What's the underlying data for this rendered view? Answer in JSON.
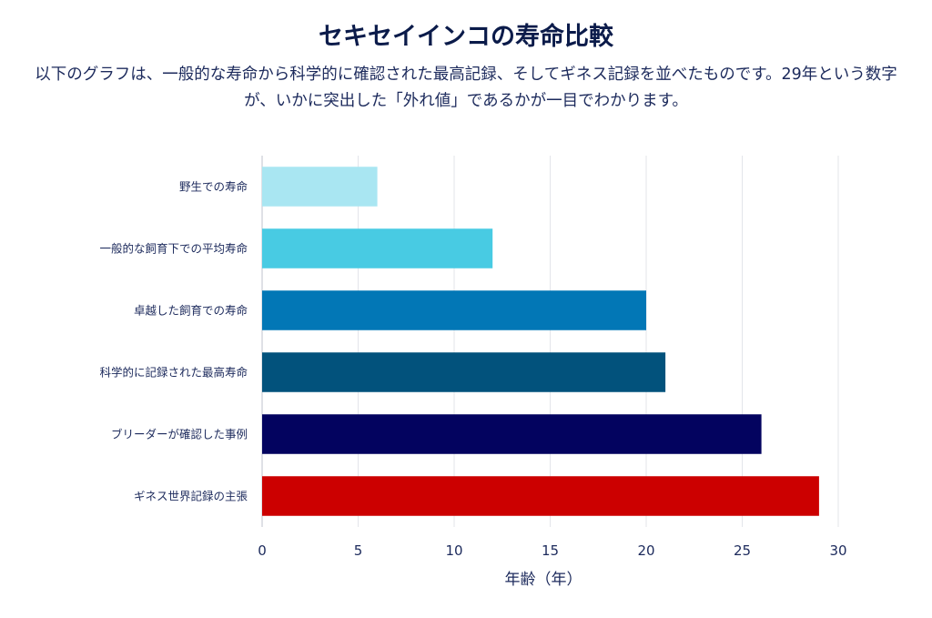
{
  "title": "セキセイインコの寿命比較",
  "subtitle": "以下のグラフは、一般的な寿命から科学的に確認された最高記録、そしてギネス記録を並べたものです。29年という数字が、いかに突出した「外れ値」であるかが一目でわかります。",
  "chart_data": {
    "type": "bar",
    "orientation": "horizontal",
    "categories": [
      "野生での寿命",
      "一般的な飼育下での平均寿命",
      "卓越した飼育での寿命",
      "科学的に記録された最高寿命",
      "ブリーダーが確認した事例",
      "ギネス世界記録の主張"
    ],
    "values": [
      6,
      12,
      20,
      21,
      26,
      29
    ],
    "colors": [
      "#a9e6f2",
      "#48cbe3",
      "#0277b6",
      "#02527c",
      "#03035f",
      "#cc0000"
    ],
    "xlabel": "年齢（年）",
    "ylabel": "",
    "xlim": [
      0,
      30
    ],
    "xticks": [
      0,
      5,
      10,
      15,
      20,
      25,
      30
    ],
    "grid": true
  }
}
